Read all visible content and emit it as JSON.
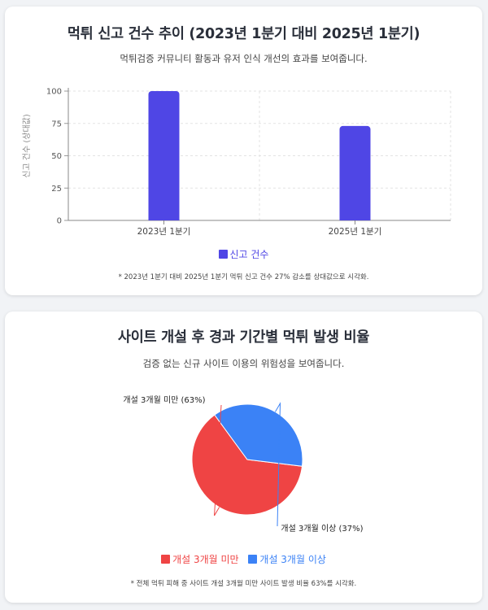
{
  "bar_section": {
    "title": "먹튀 신고 건수 추이 (2023년 1분기 대비 2025년 1분기)",
    "subtitle": "먹튀검증 커뮤니티 활동과 유저 인식 개선의 효과를 보여줍니다.",
    "note": "* 2023년 1분기 대비 2025년 1분기 먹튀 신고 건수 27% 감소를 상대값으로 시각화."
  },
  "pie_section": {
    "title": "사이트 개설 후 경과 기간별 먹튀 발생 비율",
    "subtitle": "검증 없는 신규 사이트 이용의 위험성을 보여줍니다.",
    "note": "* 전체 먹튀 피해 중 사이트 개설 3개월 미만 사이트 발생 비율 63%를 시각화."
  },
  "colors": {
    "bar": "#4f46e5",
    "pie_under3": "#ef4444",
    "pie_over3": "#3b82f6"
  },
  "chart_data": [
    {
      "type": "bar",
      "categories": [
        "2023년 1분기",
        "2025년 1분기"
      ],
      "series": [
        {
          "name": "신고 건수",
          "values": [
            100,
            73
          ]
        }
      ],
      "ylabel": "신고 건수 (상대값)",
      "ylim": [
        0,
        100
      ],
      "yticks": [
        0,
        25,
        50,
        75,
        100
      ],
      "grid": true,
      "legend": "bottom"
    },
    {
      "type": "pie",
      "labels": [
        "개설 3개월 미만",
        "개설 3개월 이상"
      ],
      "values": [
        63,
        37
      ],
      "slice_labels": [
        "개설 3개월 미만 (63%)",
        "개설 3개월 이상 (37%)"
      ],
      "legend": "bottom"
    }
  ]
}
